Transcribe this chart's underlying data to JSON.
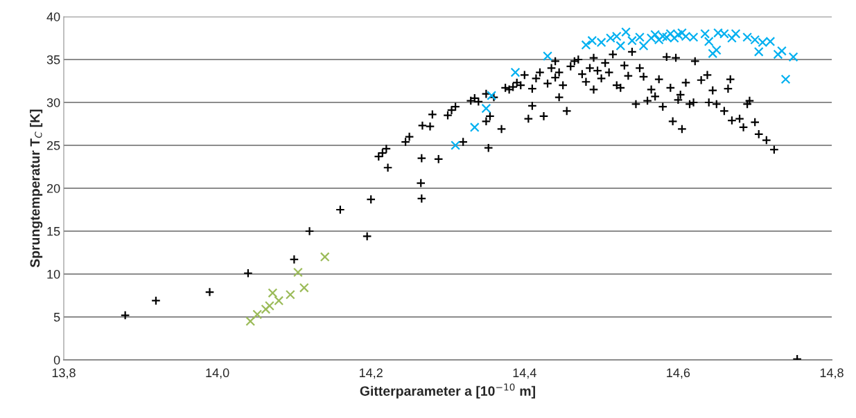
{
  "chart_data": {
    "type": "scatter",
    "xlabel": "Gitterparameter a [10$^{−10}$ m]",
    "ylabel": "Sprungtemperatur T$_{C}$ [K]",
    "xlim": [
      13.8,
      14.8
    ],
    "xticks": [
      {
        "value": 13.8,
        "label": "13,8"
      },
      {
        "value": 14.0,
        "label": "14,0"
      },
      {
        "value": 14.2,
        "label": "14,2"
      },
      {
        "value": 14.4,
        "label": "14,4"
      },
      {
        "value": 14.6,
        "label": "14,6"
      },
      {
        "value": 14.8,
        "label": "14,8"
      }
    ],
    "ylim": [
      0,
      40
    ],
    "yticks": [
      0,
      5,
      10,
      15,
      20,
      25,
      30,
      35,
      40
    ],
    "grid": "y",
    "legend": false,
    "series": [
      {
        "color": "#000000",
        "marker": "plus",
        "x": [
          13.88,
          13.92,
          13.99,
          14.04,
          14.1,
          14.12,
          14.16,
          14.195,
          14.2,
          14.21,
          14.215,
          14.22,
          14.222,
          14.245,
          14.25,
          14.265,
          14.266,
          14.266,
          14.267,
          14.277,
          14.28,
          14.288,
          14.3,
          14.305,
          14.31,
          14.32,
          14.33,
          14.335,
          14.34,
          14.35,
          14.35,
          14.353,
          14.355,
          14.36,
          14.37,
          14.375,
          14.38,
          14.385,
          14.39,
          14.395,
          14.4,
          14.405,
          14.41,
          14.41,
          14.415,
          14.42,
          14.425,
          14.43,
          14.435,
          14.44,
          14.44,
          14.445,
          14.445,
          14.45,
          14.455,
          14.46,
          14.465,
          14.47,
          14.475,
          14.48,
          14.485,
          14.49,
          14.49,
          14.495,
          14.5,
          14.505,
          14.51,
          14.515,
          14.52,
          14.525,
          14.53,
          14.535,
          14.54,
          14.545,
          14.55,
          14.555,
          14.56,
          14.565,
          14.57,
          14.575,
          14.58,
          14.585,
          14.59,
          14.593,
          14.597,
          14.6,
          14.603,
          14.605,
          14.61,
          14.615,
          14.62,
          14.622,
          14.63,
          14.638,
          14.64,
          14.645,
          14.65,
          14.66,
          14.665,
          14.668,
          14.67,
          14.68,
          14.685,
          14.69,
          14.693,
          14.7,
          14.705,
          14.715,
          14.725,
          14.755
        ],
        "values": [
          5.2,
          6.9,
          7.9,
          10.1,
          11.7,
          15.0,
          17.5,
          14.4,
          18.7,
          23.7,
          24.1,
          24.6,
          22.4,
          25.4,
          26.0,
          20.6,
          18.8,
          23.5,
          27.3,
          27.2,
          28.6,
          23.4,
          28.5,
          29.1,
          29.5,
          25.4,
          30.2,
          30.5,
          30.1,
          31.0,
          27.8,
          24.7,
          28.4,
          30.6,
          26.9,
          31.7,
          31.5,
          31.8,
          32.3,
          32.0,
          33.2,
          28.1,
          29.6,
          31.6,
          32.8,
          33.5,
          28.4,
          32.2,
          34.0,
          34.8,
          32.9,
          33.5,
          30.6,
          32.0,
          29.0,
          34.2,
          34.8,
          35.0,
          33.3,
          32.4,
          34.0,
          31.5,
          35.2,
          33.7,
          32.8,
          34.6,
          33.5,
          35.6,
          32.0,
          31.7,
          34.3,
          33.1,
          35.9,
          29.8,
          34.0,
          33.0,
          30.2,
          31.5,
          30.7,
          32.7,
          29.5,
          35.3,
          31.7,
          27.8,
          35.2,
          30.3,
          30.9,
          26.9,
          32.3,
          29.8,
          30.0,
          34.8,
          32.6,
          33.2,
          30.0,
          31.4,
          29.8,
          29.0,
          31.6,
          32.7,
          27.9,
          28.1,
          27.1,
          29.8,
          30.2,
          27.7,
          26.3,
          25.6,
          24.5,
          0.1
        ]
      },
      {
        "color": "#9bbb59",
        "marker": "cross",
        "x": [
          14.043,
          14.052,
          14.063,
          14.068,
          14.072,
          14.08,
          14.095,
          14.105,
          14.113,
          14.14
        ],
        "values": [
          4.5,
          5.3,
          5.9,
          6.3,
          7.8,
          6.9,
          7.6,
          10.2,
          8.4,
          12.0
        ]
      },
      {
        "color": "#00b0f0",
        "marker": "cross",
        "x": [
          14.31,
          14.335,
          14.35,
          14.357,
          14.388,
          14.43,
          14.48,
          14.488,
          14.5,
          14.512,
          14.52,
          14.525,
          14.532,
          14.54,
          14.55,
          14.555,
          14.565,
          14.57,
          14.575,
          14.58,
          14.585,
          14.59,
          14.595,
          14.6,
          14.605,
          14.61,
          14.62,
          14.635,
          14.64,
          14.645,
          14.65,
          14.652,
          14.66,
          14.67,
          14.675,
          14.69,
          14.7,
          14.705,
          14.71,
          14.72,
          14.73,
          14.735,
          14.74,
          14.75
        ],
        "values": [
          25.0,
          27.1,
          29.3,
          30.8,
          33.5,
          35.4,
          36.7,
          37.2,
          37.0,
          37.5,
          37.7,
          36.6,
          38.2,
          37.2,
          37.6,
          36.6,
          37.5,
          37.9,
          37.3,
          37.7,
          37.6,
          38.0,
          37.5,
          37.9,
          38.1,
          37.7,
          37.6,
          38.0,
          37.1,
          35.7,
          36.1,
          38.1,
          38.0,
          37.5,
          38.0,
          37.6,
          37.3,
          35.9,
          37.0,
          37.1,
          35.6,
          36.0,
          32.7,
          35.3
        ]
      }
    ]
  }
}
